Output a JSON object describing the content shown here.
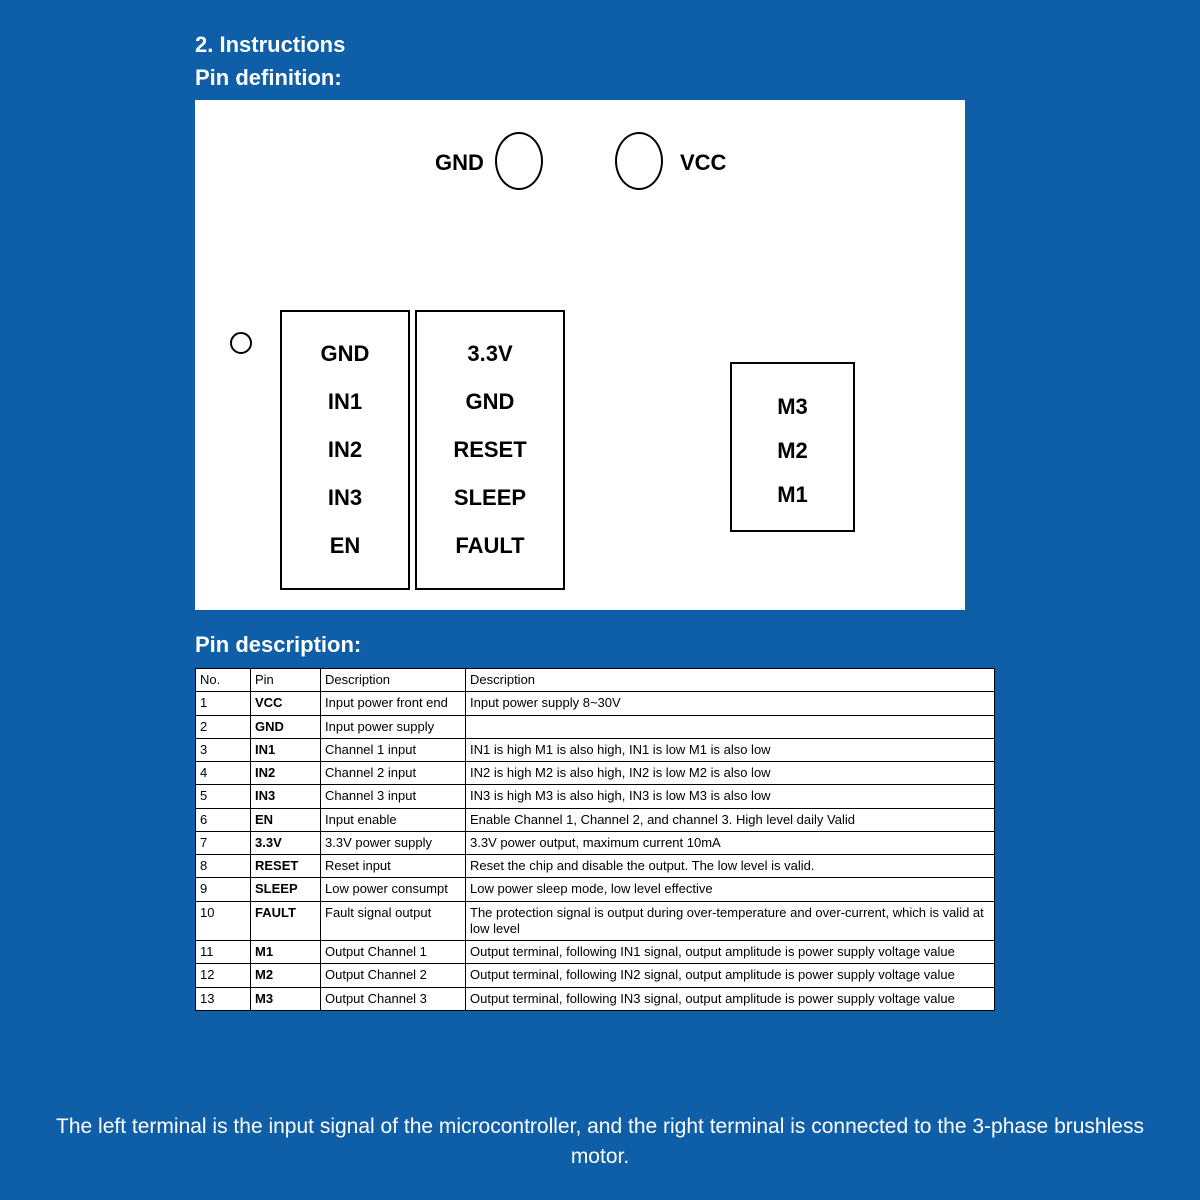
{
  "header": {
    "title": "2. Instructions",
    "subtitle": "Pin definition:"
  },
  "diagram": {
    "power": {
      "gnd": "GND",
      "vcc": "VCC"
    },
    "left_pins": [
      "GND",
      "IN1",
      "IN2",
      "IN3",
      "EN"
    ],
    "mid_pins": [
      "3.3V",
      "GND",
      "RESET",
      "SLEEP",
      "FAULT"
    ],
    "motor_pins": [
      "M3",
      "M2",
      "M1"
    ]
  },
  "descHeading": "Pin description:",
  "table": {
    "columns": [
      "No.",
      "Pin",
      "Description",
      "Description"
    ],
    "rows": [
      [
        "1",
        "VCC",
        "Input power front end",
        "Input power supply 8~30V"
      ],
      [
        "2",
        "GND",
        "Input power supply",
        ""
      ],
      [
        "3",
        "IN1",
        "Channel 1 input",
        "IN1 is high M1 is also high, IN1 is low M1 is also low"
      ],
      [
        "4",
        "IN2",
        "Channel 2 input",
        "IN2 is high M2 is also high, IN2 is low M2 is also low"
      ],
      [
        "5",
        "IN3",
        "Channel 3 input",
        "IN3 is high M3 is also high, IN3 is low M3 is also low"
      ],
      [
        "6",
        "EN",
        "Input enable",
        "Enable Channel 1, Channel 2, and channel 3. High level daily\nValid"
      ],
      [
        "7",
        "3.3V",
        "3.3V power supply",
        "3.3V power output, maximum current 10mA"
      ],
      [
        "8",
        "RESET",
        "Reset input",
        "Reset the chip and disable the output. The low level is valid."
      ],
      [
        "9",
        "SLEEP",
        "Low power consumpt",
        "Low power sleep mode, low level effective"
      ],
      [
        "10",
        "FAULT",
        "Fault signal output",
        "The protection signal is output during over-temperature and over-current, which is valid at low level"
      ],
      [
        "11",
        "M1",
        "Output Channel 1",
        "Output terminal, following IN1 signal, output amplitude is power supply voltage value"
      ],
      [
        "12",
        "M2",
        "Output Channel 2",
        "Output terminal, following IN2 signal, output amplitude is power supply voltage value"
      ],
      [
        "13",
        "M3",
        "Output Channel 3",
        "Output terminal, following IN3 signal, output amplitude is power supply voltage value"
      ]
    ]
  },
  "footer": "The left terminal is the input signal of the microcontroller, and the right terminal is connected to the 3-phase brushless motor."
}
